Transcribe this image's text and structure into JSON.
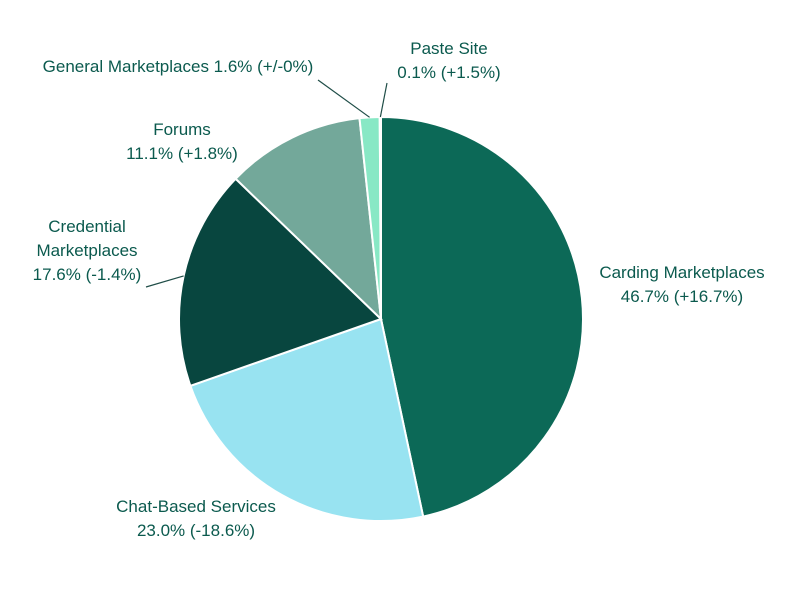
{
  "chart_data": {
    "type": "pie",
    "slices": [
      {
        "label": "Carding Marketplaces",
        "label_lines": [
          "Carding Marketplaces"
        ],
        "value": 46.7,
        "value_text": "46.7%",
        "change": 16.7,
        "change_text": "(+16.7%)",
        "color": "#0c6957",
        "change_color": "#3fae6a"
      },
      {
        "label": "Chat-Based Services",
        "label_lines": [
          "Chat-Based Services"
        ],
        "value": 23.0,
        "value_text": "23.0%",
        "change": -18.6,
        "change_text": "(-18.6%)",
        "color": "#98e3f1",
        "change_color": "#d9232e"
      },
      {
        "label": "Credential Marketplaces",
        "label_lines": [
          "Credential",
          "Marketplaces"
        ],
        "value": 17.6,
        "value_text": "17.6%",
        "change": -1.4,
        "change_text": "(-1.4%)",
        "color": "#08463f",
        "change_color": "#d9232e"
      },
      {
        "label": "Forums",
        "label_lines": [
          "Forums"
        ],
        "value": 11.1,
        "value_text": "11.1%",
        "change": 1.8,
        "change_text": "(+1.8%)",
        "color": "#73a89a",
        "change_color": "#3fae6a"
      },
      {
        "label": "General Marketplaces",
        "label_lines": [],
        "value": 1.6,
        "value_text": "General Marketplaces 1.6% (+/-0%)",
        "change": 0,
        "change_text": "",
        "color": "#88e8c5",
        "change_color": "#0b5a4e"
      },
      {
        "label": "Paste Site",
        "label_lines": [
          "Paste Site"
        ],
        "value": 0.1,
        "value_text": "0.1%",
        "change": 1.5,
        "change_text": "(+1.5%)",
        "color": "#0c6957",
        "change_color": "#3fae6a"
      }
    ]
  }
}
